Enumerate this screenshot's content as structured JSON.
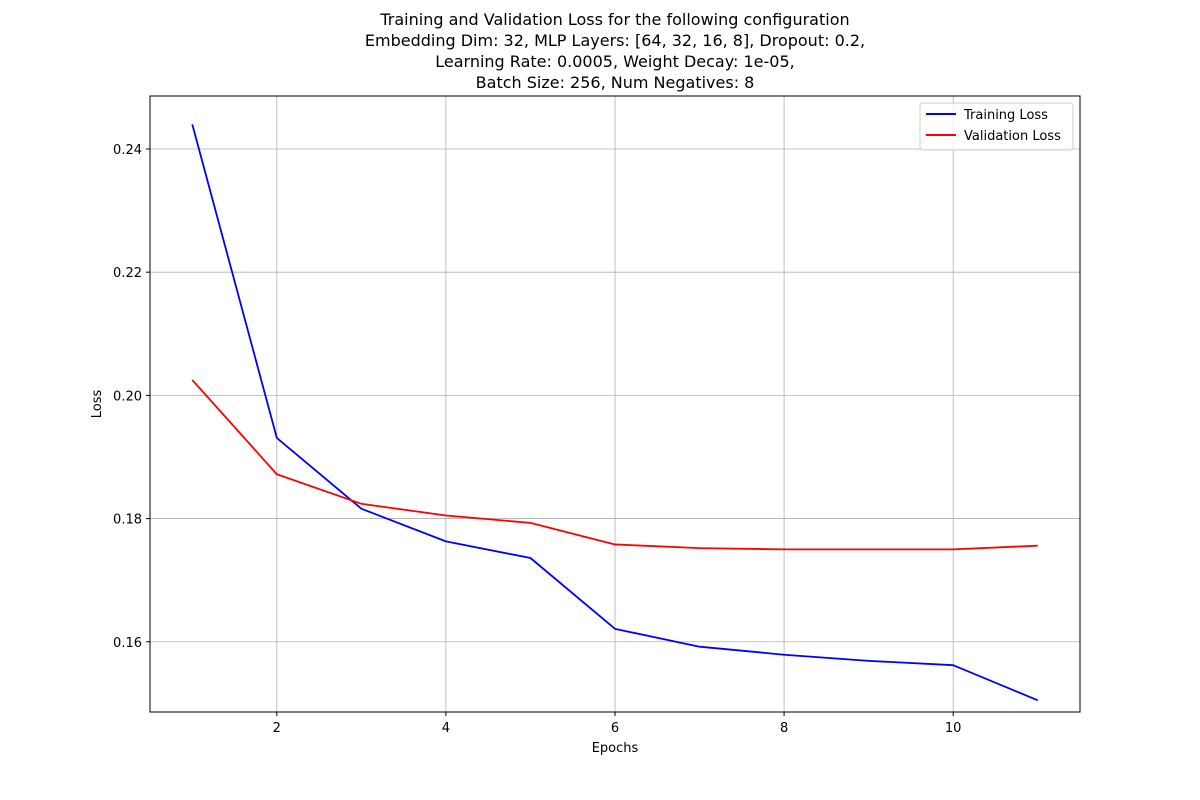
{
  "chart_data": {
    "type": "line",
    "title_lines": [
      "Training and Validation Loss for the following configuration",
      "Embedding Dim: 32, MLP Layers: [64, 32, 16, 8], Dropout: 0.2,",
      "Learning Rate: 0.0005, Weight Decay: 1e-05,",
      "Batch Size: 256, Num Negatives: 8"
    ],
    "xlabel": "Epochs",
    "ylabel": "Loss",
    "xlim": [
      0.5,
      11.5
    ],
    "ylim": [
      0.1486,
      0.2486
    ],
    "xticks": [
      2,
      4,
      6,
      8,
      10
    ],
    "xtick_labels": [
      "2",
      "4",
      "6",
      "8",
      "10"
    ],
    "yticks": [
      0.16,
      0.18,
      0.2,
      0.22,
      0.24
    ],
    "ytick_labels": [
      "0.16",
      "0.18",
      "0.20",
      "0.22",
      "0.24"
    ],
    "grid": true,
    "legend_position": "top-right",
    "x": [
      1,
      2,
      3,
      4,
      5,
      6,
      7,
      8,
      9,
      10,
      11
    ],
    "series": [
      {
        "name": "Training Loss",
        "color": "#0000ff",
        "values": [
          0.244,
          0.1931,
          0.1816,
          0.1763,
          0.1736,
          0.1621,
          0.1592,
          0.1579,
          0.1569,
          0.1562,
          0.1505
        ]
      },
      {
        "name": "Validation Loss",
        "color": "#ff0000",
        "values": [
          0.2025,
          0.1872,
          0.1824,
          0.1805,
          0.1793,
          0.1758,
          0.1752,
          0.175,
          0.175,
          0.175,
          0.1756
        ]
      }
    ]
  }
}
